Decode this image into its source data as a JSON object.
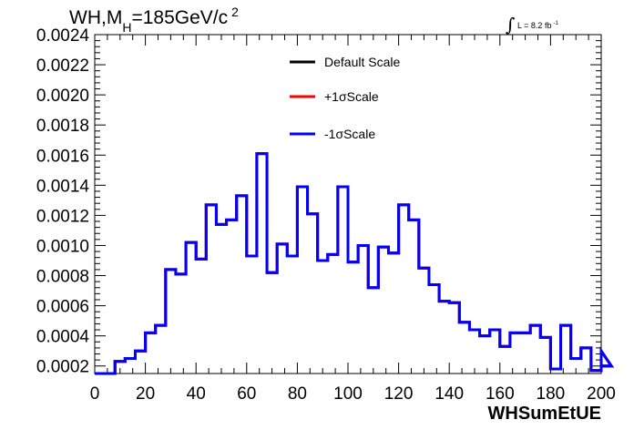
{
  "chart_data": {
    "type": "line",
    "title": "WH,M",
    "title_sub": "H",
    "title_rest": "=185GeV/c",
    "title_sup": "2",
    "lumi_label": "L = 8.2 fb",
    "lumi_sup": "-1",
    "xlabel": "WHSumEtUE",
    "ylabel": "",
    "xlim": [
      0,
      200
    ],
    "ylim": [
      0.00015,
      0.0024
    ],
    "x_ticks": [
      "0",
      "20",
      "40",
      "60",
      "80",
      "100",
      "120",
      "140",
      "160",
      "180",
      "200"
    ],
    "y_ticks": [
      "0.0002",
      "0.0004",
      "0.0006",
      "0.0008",
      "0.0010",
      "0.0012",
      "0.0014",
      "0.0016",
      "0.0018",
      "0.0020",
      "0.0022",
      "0.0024"
    ],
    "bin_width": 4,
    "bin_edges_start": 0,
    "legend_position": "top-center",
    "series": [
      {
        "name": "Default Scale",
        "color": "#000000",
        "values": [
          0.00015,
          0.00015,
          0.00023,
          0.00025,
          0.0003,
          0.00042,
          0.00047,
          0.00084,
          0.00081,
          0.00102,
          0.00091,
          0.00127,
          0.00114,
          0.00117,
          0.00133,
          0.00093,
          0.00161,
          0.00082,
          0.00101,
          0.00093,
          0.00139,
          0.00121,
          0.0009,
          0.00094,
          0.00139,
          0.00089,
          0.001,
          0.00072,
          0.00099,
          0.00095,
          0.00127,
          0.00117,
          0.00085,
          0.00074,
          0.00063,
          0.00062,
          0.00049,
          0.00044,
          0.0004,
          0.00044,
          0.00033,
          0.00042,
          0.00042,
          0.00047,
          0.00039,
          0.00018,
          0.00047,
          0.00025,
          0.00032,
          0.00017,
          0.0003,
          0.0002
        ]
      },
      {
        "name": "+1σScale",
        "color": "#ff0000",
        "values": [
          0.00015,
          0.00015,
          0.00023,
          0.00025,
          0.0003,
          0.00042,
          0.00047,
          0.00084,
          0.00081,
          0.00102,
          0.00091,
          0.00127,
          0.00114,
          0.00117,
          0.00133,
          0.00093,
          0.00161,
          0.00082,
          0.00101,
          0.00093,
          0.00139,
          0.00121,
          0.0009,
          0.00094,
          0.00139,
          0.00089,
          0.001,
          0.00072,
          0.00099,
          0.00095,
          0.00127,
          0.00117,
          0.00085,
          0.00074,
          0.00063,
          0.00062,
          0.00049,
          0.00044,
          0.0004,
          0.00044,
          0.00033,
          0.00042,
          0.00042,
          0.00047,
          0.00039,
          0.00018,
          0.00047,
          0.00025,
          0.00032,
          0.00017,
          0.0003,
          0.0002
        ]
      },
      {
        "name": "-1σScale",
        "color": "#0000ff",
        "values": [
          0.00015,
          0.00015,
          0.00023,
          0.00025,
          0.0003,
          0.00042,
          0.00047,
          0.00084,
          0.00081,
          0.00102,
          0.00091,
          0.00127,
          0.00114,
          0.00117,
          0.00133,
          0.00093,
          0.00161,
          0.00082,
          0.00101,
          0.00093,
          0.00139,
          0.00121,
          0.0009,
          0.00094,
          0.00139,
          0.00089,
          0.001,
          0.00072,
          0.00099,
          0.00095,
          0.00127,
          0.00117,
          0.00085,
          0.00074,
          0.00063,
          0.00062,
          0.00049,
          0.00044,
          0.0004,
          0.00044,
          0.00033,
          0.00042,
          0.00042,
          0.00047,
          0.00039,
          0.00018,
          0.00047,
          0.00025,
          0.00032,
          0.00017,
          0.0003,
          0.0002
        ]
      }
    ]
  }
}
